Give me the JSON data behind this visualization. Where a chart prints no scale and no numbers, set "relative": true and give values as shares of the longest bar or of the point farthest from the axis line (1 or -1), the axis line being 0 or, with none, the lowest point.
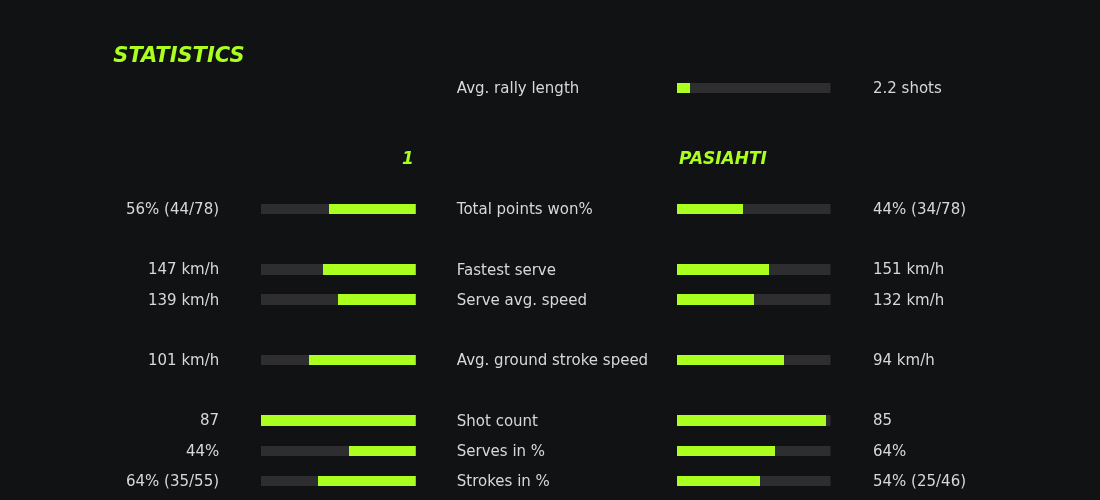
{
  "chart_data": [
    {
      "type": "bar",
      "title": "STATISTICS",
      "orientation": "horizontal",
      "stacked": true,
      "relative": true,
      "tick_labels": "y",
      "legend": false,
      "categories": [
        "Avg. rally length",
        null,
        null,
        null,
        "Total points won%",
        null,
        "Fastest serve",
        "Serve avg. speed",
        null,
        "Avg. ground stroke speed",
        null,
        "Shot count",
        "Serves in %",
        "Strokes in %"
      ],
      "series": [
        {
          "name": "1",
          "color": "#aaff1e",
          "values": [
            null,
            null,
            null,
            null,
            0.56,
            null,
            0.6,
            0.5,
            null,
            0.69,
            null,
            1.0,
            0.43,
            0.63
          ]
        },
        {
          "color": "#2e2d2f",
          "values": [
            null,
            null,
            null,
            null,
            0.44,
            null,
            0.4,
            0.5,
            null,
            0.31,
            null,
            0.0,
            0.57,
            0.37
          ]
        }
      ],
      "annotations": [
        "56% (44/78)",
        "147 km/h",
        "139 km/h",
        "101 km/h",
        "87",
        "44%",
        "64% (35/55)"
      ]
    },
    {
      "type": "bar",
      "orientation": "horizontal",
      "stacked": true,
      "relative": true,
      "legend": false,
      "categories": [
        null,
        null,
        null,
        null,
        null,
        null,
        null,
        null,
        null,
        null,
        null,
        null,
        null,
        null
      ],
      "series": [
        {
          "name": "PASIAHTI",
          "color": "#aaff1e",
          "values": [
            0.09,
            null,
            null,
            null,
            0.43,
            null,
            0.6,
            0.5,
            null,
            0.7,
            null,
            0.97,
            0.64,
            0.54
          ]
        },
        {
          "color": "#2e2d2f",
          "values": [
            0.91,
            null,
            null,
            null,
            0.57,
            null,
            0.4,
            0.5,
            null,
            0.3,
            null,
            0.03,
            0.36,
            0.46
          ]
        }
      ],
      "annotations": [
        "2.2 shots",
        "44% (34/78)",
        "151 km/h",
        "132 km/h",
        "94 km/h",
        "85",
        "64%",
        "54% (25/46)"
      ]
    }
  ]
}
